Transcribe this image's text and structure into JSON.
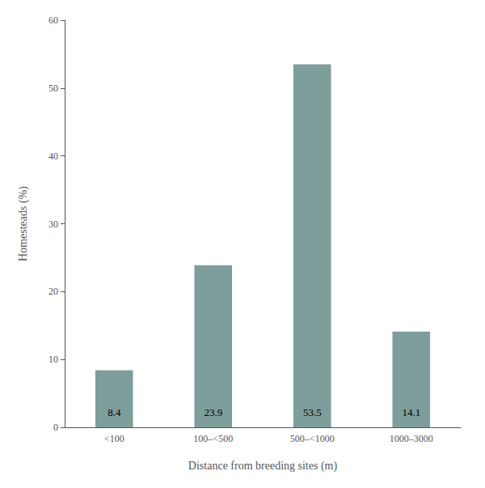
{
  "chart_data": {
    "type": "bar",
    "categories": [
      "<100",
      "100–<500",
      "500–<1000",
      "1000–3000"
    ],
    "values": [
      8.4,
      23.9,
      53.5,
      14.1
    ],
    "color": "#7d9e9b",
    "xlabel": "Distance from breeding sites (m)",
    "ylabel": "Homesteads (%)",
    "ylim": [
      0,
      60
    ],
    "yticks": [
      0,
      10,
      20,
      30,
      40,
      50,
      60
    ],
    "data_labels": true,
    "grid": false
  }
}
